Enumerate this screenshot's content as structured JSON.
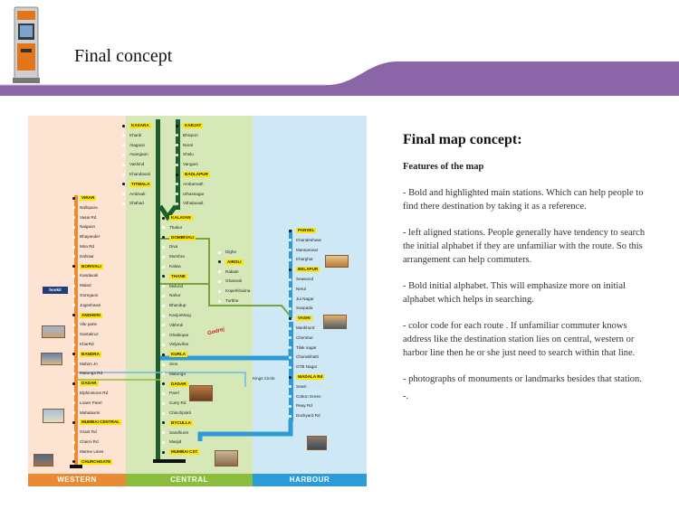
{
  "header": {
    "title": "Final concept",
    "banner_color": "#8a65a8"
  },
  "map": {
    "lines": {
      "western": {
        "label": "WESTERN",
        "color": "#e98a35",
        "bg": "#fce3d2"
      },
      "central": {
        "label": "CENTRAL",
        "color": "#8bbd3f",
        "bg": "#d7e8b8"
      },
      "harbour": {
        "label": "HARBOUR",
        "color": "#2d9bd7",
        "bg": "#cfe8f5"
      }
    },
    "western_stations": [
      {
        "name": "VIRAR",
        "main": true
      },
      {
        "name": "Nallopara",
        "main": false
      },
      {
        "name": "Vasai Rd",
        "main": false
      },
      {
        "name": "Naigaon",
        "main": false
      },
      {
        "name": "Bhayander",
        "main": false
      },
      {
        "name": "Mira Rd",
        "main": false
      },
      {
        "name": "Dahisar",
        "main": false
      },
      {
        "name": "BORIVALI",
        "main": true
      },
      {
        "name": "Kandavali",
        "main": false
      },
      {
        "name": "Malad",
        "main": false
      },
      {
        "name": "Goregaon",
        "main": false
      },
      {
        "name": "Jogeshwari",
        "main": false
      },
      {
        "name": "ANDHERI",
        "main": true
      },
      {
        "name": "Vile parle",
        "main": false
      },
      {
        "name": "Santakruz",
        "main": false
      },
      {
        "name": "KharRd",
        "main": false
      },
      {
        "name": "BANDRA",
        "main": true
      },
      {
        "name": "Mahim Jn",
        "main": false
      },
      {
        "name": "Matunga Rd",
        "main": false
      },
      {
        "name": "DADAR",
        "main": true
      },
      {
        "name": "Elphinstone Rd",
        "main": false
      },
      {
        "name": "Lower Parel",
        "main": false
      },
      {
        "name": "Mahalaxmi",
        "main": false
      },
      {
        "name": "MUMBAI CENTRAL",
        "main": true
      },
      {
        "name": "Grant Rd",
        "main": false
      },
      {
        "name": "Charni Rd",
        "main": false
      },
      {
        "name": "Marine Lines",
        "main": false
      },
      {
        "name": "CHURCHGATE",
        "main": true
      }
    ],
    "central_top_left": [
      {
        "name": "KASARA",
        "main": true
      },
      {
        "name": "Khardi",
        "main": false
      },
      {
        "name": "Atagaon",
        "main": false
      },
      {
        "name": "Asangaon",
        "main": false
      },
      {
        "name": "Vashind",
        "main": false
      },
      {
        "name": "Khandavali",
        "main": false
      },
      {
        "name": "TITWALA",
        "main": true
      },
      {
        "name": "Ambivali",
        "main": false
      },
      {
        "name": "Shahad",
        "main": false
      }
    ],
    "central_top_right": [
      {
        "name": "KARJAT",
        "main": true
      },
      {
        "name": "Bhivpuri",
        "main": false
      },
      {
        "name": "Neral",
        "main": false
      },
      {
        "name": "Shelu",
        "main": false
      },
      {
        "name": "Vangani",
        "main": false
      },
      {
        "name": "BADLAPUR",
        "main": true
      },
      {
        "name": "Ambarnath",
        "main": false
      },
      {
        "name": "Ulhasnagar",
        "main": false
      },
      {
        "name": "Vithalavadi",
        "main": false
      }
    ],
    "central_stations": [
      {
        "name": "KALAYAN",
        "main": true
      },
      {
        "name": "Thakur",
        "main": false
      },
      {
        "name": "DOMBIVALI",
        "main": true
      },
      {
        "name": "Diva",
        "main": false
      },
      {
        "name": "Mumbra",
        "main": false
      },
      {
        "name": "Kalwa",
        "main": false
      },
      {
        "name": "THANE",
        "main": true
      },
      {
        "name": "Mulund",
        "main": false
      },
      {
        "name": "Nahur",
        "main": false
      },
      {
        "name": "Bhandup",
        "main": false
      },
      {
        "name": "KanjurMarg",
        "main": false
      },
      {
        "name": "Vikhroli",
        "main": false
      },
      {
        "name": "Ghatkopar",
        "main": false
      },
      {
        "name": "Vidyavihar",
        "main": false
      },
      {
        "name": "KURLA",
        "main": true
      },
      {
        "name": "Sion",
        "main": false
      },
      {
        "name": "Matunga",
        "main": false
      },
      {
        "name": "DADAR",
        "main": true
      },
      {
        "name": "Parel",
        "main": false
      },
      {
        "name": "Curry Rd",
        "main": false
      },
      {
        "name": "Chinchpokli",
        "main": false
      },
      {
        "name": "BYCULLA",
        "main": true
      },
      {
        "name": "Sandhurst",
        "main": false
      },
      {
        "name": "Masjid",
        "main": false
      },
      {
        "name": "MUMBAI CST",
        "main": true
      }
    ],
    "transharbour": [
      {
        "name": "Dighe",
        "main": false
      },
      {
        "name": "AIROLI",
        "main": true
      },
      {
        "name": "Rabale",
        "main": false
      },
      {
        "name": "Ghansoli",
        "main": false
      },
      {
        "name": "Koperkhairna",
        "main": false
      },
      {
        "name": "Turbhe",
        "main": false
      }
    ],
    "harbour_stations": [
      {
        "name": "PANVEL",
        "main": true
      },
      {
        "name": "Khandeshwar",
        "main": false
      },
      {
        "name": "Mansarovar",
        "main": false
      },
      {
        "name": "Kharghar",
        "main": false
      },
      {
        "name": "BELAPUR",
        "main": true
      },
      {
        "name": "Seawood",
        "main": false
      },
      {
        "name": "Nerul",
        "main": false
      },
      {
        "name": "Jui Nagar",
        "main": false
      },
      {
        "name": "Sanpada",
        "main": false
      },
      {
        "name": "VASHI",
        "main": true
      },
      {
        "name": "Mankhurd",
        "main": false
      },
      {
        "name": "Chembur",
        "main": false
      },
      {
        "name": "Tilak nagar",
        "main": false
      },
      {
        "name": "Chunabhatti",
        "main": false
      },
      {
        "name": "GTB Nagar",
        "main": false
      },
      {
        "name": "WADALA Rd",
        "main": true
      },
      {
        "name": "Sewri",
        "main": false
      },
      {
        "name": "Cotton Green",
        "main": false
      },
      {
        "name": "Reay Rd",
        "main": false
      },
      {
        "name": "Dockyard Rd",
        "main": false
      }
    ],
    "kings_circle": "Kings Circle",
    "logo_bookit": "bookit",
    "logo_godrej": "Godrej"
  },
  "description": {
    "heading": "Final map concept:",
    "subheading": "Features of the map",
    "paragraphs": [
      "- Bold and highlighted main stations. Which can help people to find there destination by taking it as a reference.",
      "- left aligned stations. People generally have tendency to search the initial alphabet if they are unfamiliar with the route. So this arrangement can help commuters.",
      "- Bold initial alphabet. This will emphasize more on initial alphabet which helps in searching.",
      "- color code for each route . If unfamiliar commuter knows address like the destination station lies on central, western or harbor line then he or she just need to search within that line.",
      "- photographs of monuments or landmarks besides that station.",
      "-."
    ]
  }
}
